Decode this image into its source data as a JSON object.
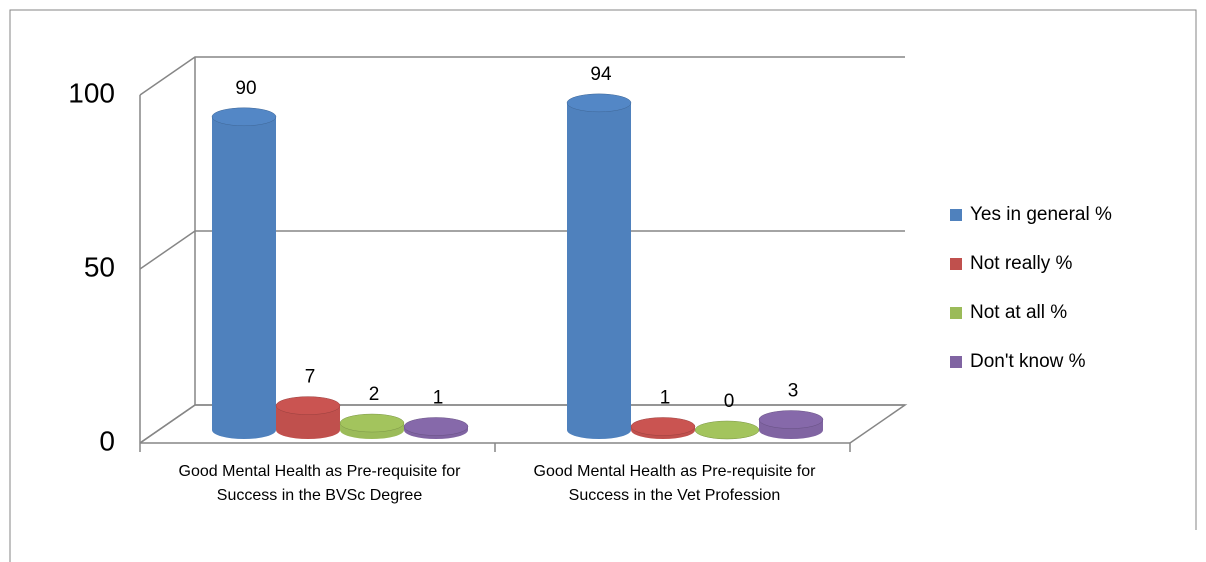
{
  "chart_data": {
    "type": "bar3d",
    "categories": [
      "Good Mental Health as Pre-requisite for Success in the BVSc Degree",
      "Good Mental Health as Pre-requisite for Success in the Vet Profession"
    ],
    "series": [
      {
        "name": "Yes in general %",
        "color": "#4f81bd",
        "values": [
          90,
          94
        ]
      },
      {
        "name": "Not really %",
        "color": "#c0504d",
        "values": [
          7,
          1
        ]
      },
      {
        "name": "Not at all %",
        "color": "#9bbb59",
        "values": [
          2,
          0
        ]
      },
      {
        "name": "Don't know %",
        "color": "#8064a2",
        "values": [
          1,
          3
        ]
      }
    ],
    "ylim": [
      0,
      100
    ],
    "yticks": [
      0,
      50,
      100
    ],
    "grid": true,
    "legend": "right"
  }
}
